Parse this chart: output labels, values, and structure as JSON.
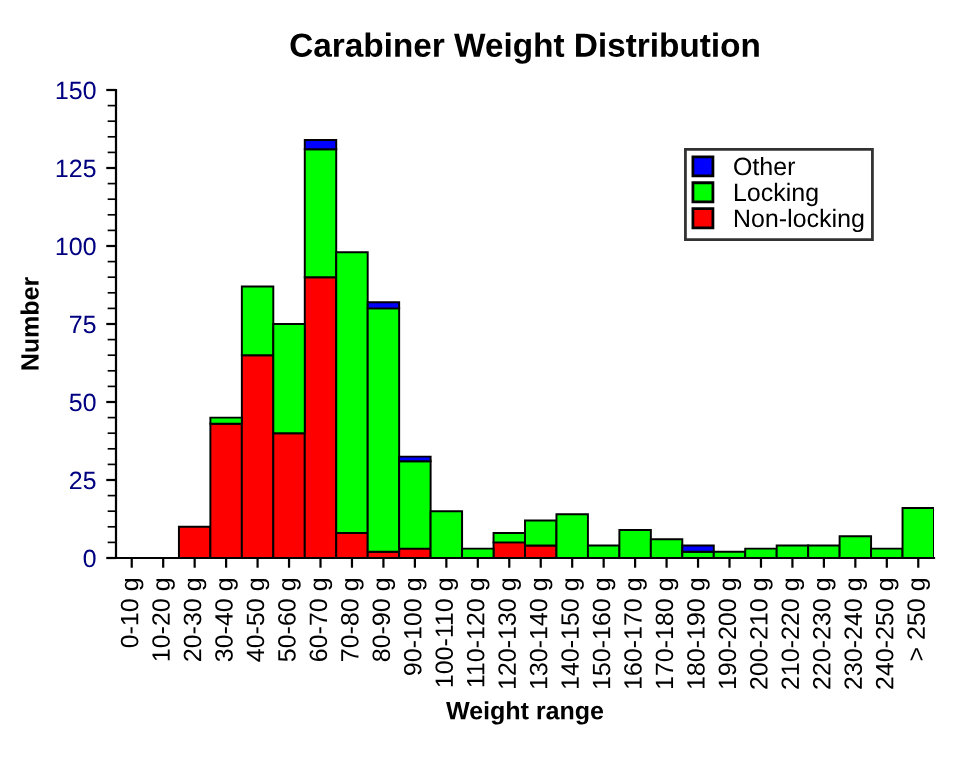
{
  "chart_data": {
    "type": "bar",
    "stacked": true,
    "title": "Carabiner Weight Distribution",
    "xlabel": "Weight range",
    "ylabel": "Number",
    "categories": [
      "0-10 g",
      "10-20 g",
      "20-30 g",
      "30-40 g",
      "40-50 g",
      "50-60 g",
      "60-70 g",
      "70-80 g",
      "80-90 g",
      "90-100 g",
      "100-110 g",
      "110-120 g",
      "120-130 g",
      "130-140 g",
      "140-150 g",
      "150-160 g",
      "160-170 g",
      "170-180 g",
      "180-190 g",
      "190-200 g",
      "200-210 g",
      "210-220 g",
      "220-230 g",
      "230-240 g",
      "240-250 g",
      "> 250 g"
    ],
    "series": [
      {
        "name": "Non-locking",
        "color": "#ff0000",
        "values": [
          null,
          null,
          10,
          43,
          65,
          40,
          90,
          8,
          2,
          3,
          null,
          null,
          5,
          4,
          null,
          null,
          null,
          null,
          null,
          null,
          null,
          null,
          null,
          null,
          null,
          null
        ]
      },
      {
        "name": "Locking",
        "color": "#00ff00",
        "values": [
          null,
          null,
          null,
          2,
          22,
          35,
          41,
          90,
          78,
          28,
          15,
          3,
          3,
          8,
          14,
          4,
          9,
          6,
          2,
          2,
          3,
          4,
          4,
          7,
          3,
          16
        ]
      },
      {
        "name": "Other",
        "color": "#0000ff",
        "values": [
          null,
          null,
          null,
          null,
          null,
          null,
          3,
          null,
          2,
          1.5,
          null,
          null,
          null,
          null,
          null,
          null,
          null,
          null,
          2,
          null,
          null,
          null,
          null,
          null,
          null,
          null
        ]
      }
    ],
    "ylim": [
      0,
      150
    ],
    "yticks": [
      0,
      {
        "value": 5,
        "label": null
      },
      {
        "value": 10,
        "label": null
      },
      {
        "value": 15,
        "label": null
      },
      {
        "value": 20,
        "label": null
      },
      25,
      {
        "value": 30,
        "label": null
      },
      {
        "value": 35,
        "label": null
      },
      {
        "value": 40,
        "label": null
      },
      {
        "value": 45,
        "label": null
      },
      50,
      {
        "value": 55,
        "label": null
      },
      {
        "value": 60,
        "label": null
      },
      {
        "value": 65,
        "label": null
      },
      {
        "value": 70,
        "label": null
      },
      75,
      {
        "value": 80,
        "label": null
      },
      {
        "value": 85,
        "label": null
      },
      {
        "value": 90,
        "label": null
      },
      {
        "value": 95,
        "label": null
      },
      100,
      {
        "value": 105,
        "label": null
      },
      {
        "value": 110,
        "label": null
      },
      {
        "value": 115,
        "label": null
      },
      {
        "value": 120,
        "label": null
      },
      125,
      {
        "value": 130,
        "label": null
      },
      {
        "value": 135,
        "label": null
      },
      {
        "value": 140,
        "label": null
      },
      {
        "value": 145,
        "label": null
      },
      150
    ],
    "grid": false,
    "legend": "top right"
  }
}
